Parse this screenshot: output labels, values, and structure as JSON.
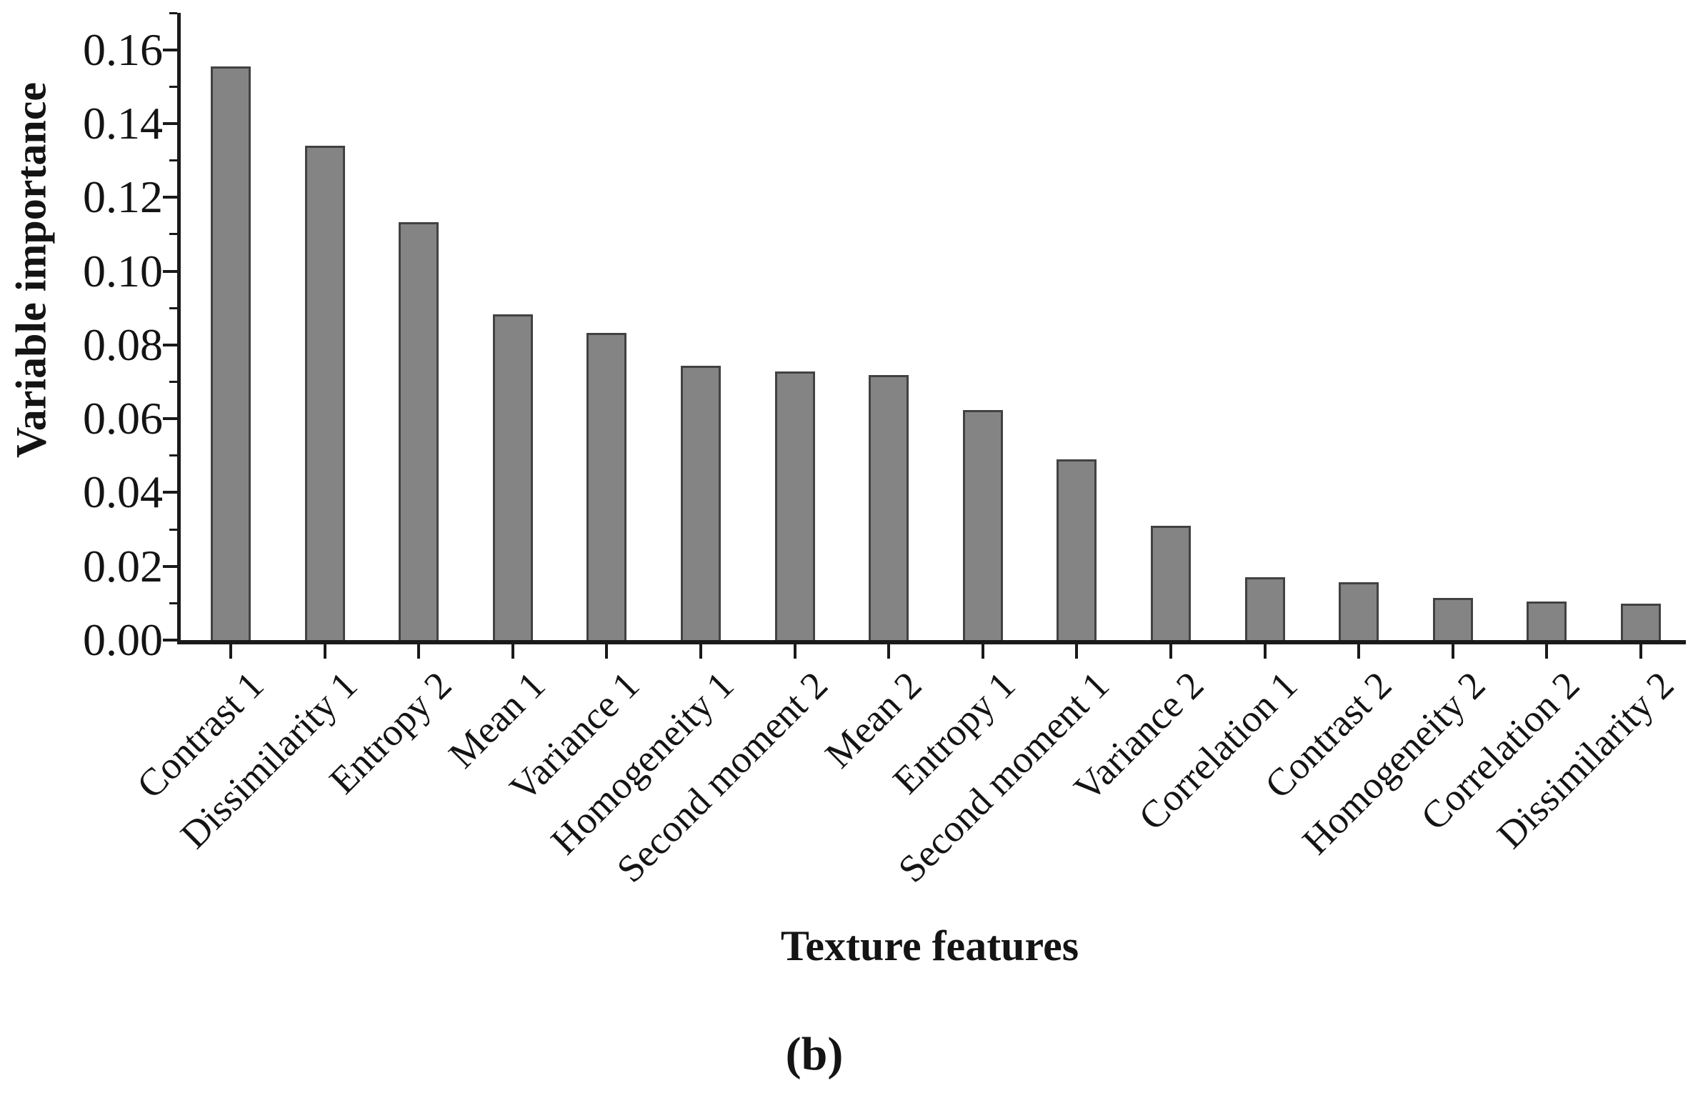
{
  "chart_data": {
    "type": "bar",
    "title": "",
    "xlabel": "Texture features",
    "ylabel": "Variable importance",
    "caption": "(b)",
    "categories": [
      "Contrast 1",
      "Dissimilarity 1",
      "Entropy 2",
      "Mean 1",
      "Variance 1",
      "Homogeneity 1",
      "Second moment 2",
      "Mean 2",
      "Entropy 1",
      "Second moment 1",
      "Variance 2",
      "Correlation 1",
      "Contrast 2",
      "Homogeneity 2",
      "Correlation 2",
      "Dissimilarity 2"
    ],
    "values": [
      0.1555,
      0.134,
      0.1133,
      0.0882,
      0.0832,
      0.0744,
      0.0728,
      0.0718,
      0.0623,
      0.049,
      0.031,
      0.017,
      0.0156,
      0.0115,
      0.0104,
      0.0099
    ],
    "ylim": [
      0,
      0.17
    ],
    "ytick_labels": [
      "0.00",
      "0.02",
      "0.04",
      "0.06",
      "0.08",
      "0.10",
      "0.12",
      "0.14",
      "0.16"
    ],
    "yticks": [
      0.0,
      0.02,
      0.04,
      0.06,
      0.08,
      0.1,
      0.12,
      0.14,
      0.16
    ],
    "minor_yticks": [
      0.01,
      0.03,
      0.05,
      0.07,
      0.09,
      0.11,
      0.13,
      0.15,
      0.17
    ],
    "grid": false,
    "legend": "none",
    "bar_fill_color": "#848484",
    "bar_border_color": "#424242",
    "axis_color": "#1a1a1a",
    "text_color": "#141414"
  }
}
